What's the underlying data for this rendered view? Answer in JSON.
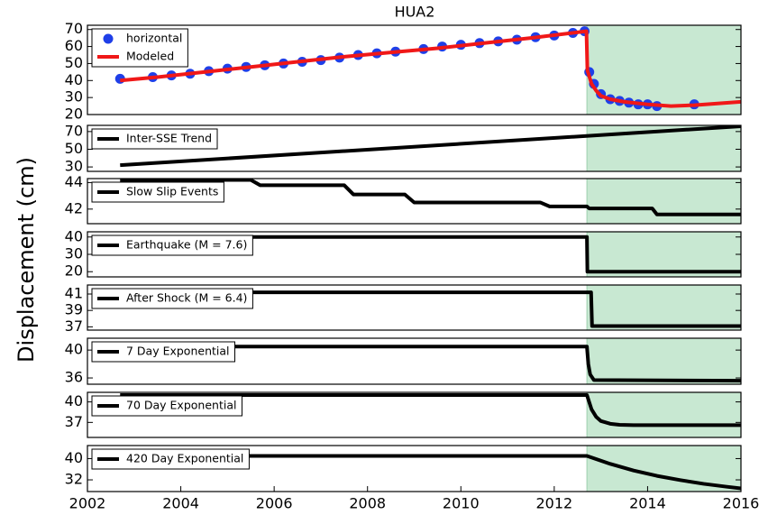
{
  "title": "HUA2",
  "ylabel": "Displacement (cm)",
  "chart_data": [
    {
      "type": "line",
      "xlim": [
        2002,
        2016
      ],
      "ylim": [
        20,
        72.5
      ],
      "yticks": [
        20,
        30,
        40,
        50,
        60,
        70
      ],
      "legend": "upper left",
      "span": [
        2012.7,
        2016
      ],
      "span_color": "#c8e8d2",
      "series": [
        {
          "name": "horizontal",
          "mode": "markers",
          "color": "#1f3fe8",
          "x": [
            2002.7,
            2003.4,
            2003.8,
            2004.2,
            2004.6,
            2005.0,
            2005.4,
            2005.8,
            2006.2,
            2006.6,
            2007.0,
            2007.4,
            2007.8,
            2008.2,
            2008.6,
            2009.2,
            2009.6,
            2010.0,
            2010.4,
            2010.8,
            2011.2,
            2011.6,
            2012.0,
            2012.4,
            2012.65,
            2012.75,
            2012.85,
            2013.0,
            2013.2,
            2013.4,
            2013.6,
            2013.8,
            2014.0,
            2014.2,
            2015.0
          ],
          "values": [
            41,
            42,
            43,
            44,
            45.5,
            47,
            48,
            49,
            50,
            51,
            52,
            53.5,
            55,
            56,
            57,
            58.5,
            60,
            61,
            62,
            63,
            64,
            65.5,
            66.5,
            68,
            69,
            45,
            38,
            32,
            29,
            28,
            27,
            26,
            26,
            25,
            26
          ]
        },
        {
          "name": "Modeled",
          "mode": "line",
          "color": "#f01818",
          "x": [
            2002.7,
            2003.5,
            2004.5,
            2005.5,
            2006.5,
            2007.5,
            2008.5,
            2009.5,
            2010.5,
            2011.5,
            2012.69,
            2012.71,
            2012.8,
            2012.9,
            2013.0,
            2013.2,
            2013.5,
            2014.0,
            2014.5,
            2015.0,
            2015.5,
            2016
          ],
          "values": [
            40,
            42,
            45,
            48,
            51,
            54,
            56.5,
            59,
            62,
            65,
            69,
            46,
            38,
            34,
            31,
            29,
            27.5,
            26,
            25,
            25.5,
            26.5,
            27.5
          ]
        }
      ]
    },
    {
      "type": "line",
      "xlim": [
        2002,
        2016
      ],
      "ylim": [
        25,
        77
      ],
      "yticks": [
        30,
        50,
        70
      ],
      "legend": "upper left",
      "span": [
        2012.7,
        2016
      ],
      "span_color": "#c8e8d2",
      "series": [
        {
          "name": "Inter-SSE Trend",
          "mode": "line",
          "color": "#000000",
          "x": [
            2002.7,
            2016
          ],
          "values": [
            32,
            76
          ]
        }
      ]
    },
    {
      "type": "line",
      "xlim": [
        2002,
        2016
      ],
      "ylim": [
        40.9,
        44.3
      ],
      "yticks": [
        42,
        44
      ],
      "legend": "upper left",
      "span": [
        2012.7,
        2016
      ],
      "span_color": "#c8e8d2",
      "series": [
        {
          "name": "Slow Slip Events",
          "mode": "line",
          "color": "#000000",
          "x": [
            2002.7,
            2005.5,
            2005.7,
            2007.5,
            2007.7,
            2008.8,
            2009.0,
            2011.7,
            2011.9,
            2012.7,
            2012.75,
            2014.1,
            2014.2,
            2016
          ],
          "values": [
            44.2,
            44.2,
            43.8,
            43.8,
            43.1,
            43.1,
            42.5,
            42.5,
            42.2,
            42.2,
            42.05,
            42.05,
            41.6,
            41.6
          ]
        }
      ]
    },
    {
      "type": "line",
      "xlim": [
        2002,
        2016
      ],
      "ylim": [
        17,
        43
      ],
      "yticks": [
        20,
        30,
        40
      ],
      "legend": "upper left",
      "span": [
        2012.7,
        2016
      ],
      "span_color": "#c8e8d2",
      "series": [
        {
          "name": "Earthquake (M = 7.6)",
          "mode": "line",
          "color": "#000000",
          "x": [
            2002.7,
            2012.7,
            2012.71,
            2016
          ],
          "values": [
            40,
            40,
            20,
            20
          ]
        }
      ]
    },
    {
      "type": "line",
      "xlim": [
        2002,
        2016
      ],
      "ylim": [
        36.6,
        42.1
      ],
      "yticks": [
        37,
        39,
        41
      ],
      "legend": "upper left",
      "span": [
        2012.7,
        2016
      ],
      "span_color": "#c8e8d2",
      "series": [
        {
          "name": "After Shock (M = 6.4)",
          "mode": "line",
          "color": "#000000",
          "x": [
            2002.7,
            2012.79,
            2012.81,
            2016
          ],
          "values": [
            41.2,
            41.2,
            37.1,
            37.1
          ]
        }
      ]
    },
    {
      "type": "line",
      "xlim": [
        2002,
        2016
      ],
      "ylim": [
        35.1,
        41.7
      ],
      "yticks": [
        36,
        40
      ],
      "legend": "upper left",
      "span": [
        2012.7,
        2016
      ],
      "span_color": "#c8e8d2",
      "series": [
        {
          "name": "7 Day Exponential",
          "mode": "line",
          "color": "#000000",
          "x": [
            2002.7,
            2012.7,
            2012.73,
            2012.77,
            2012.85,
            2016
          ],
          "values": [
            40.5,
            40.5,
            38,
            36.5,
            35.7,
            35.6
          ]
        }
      ]
    },
    {
      "type": "line",
      "xlim": [
        2002,
        2016
      ],
      "ylim": [
        34.8,
        41.4
      ],
      "yticks": [
        37,
        40
      ],
      "legend": "upper left",
      "span": [
        2012.7,
        2016
      ],
      "span_color": "#c8e8d2",
      "series": [
        {
          "name": "70 Day Exponential",
          "mode": "line",
          "color": "#000000",
          "x": [
            2002.7,
            2012.7,
            2012.8,
            2012.9,
            2013.0,
            2013.2,
            2013.4,
            2013.7,
            2014,
            2016
          ],
          "values": [
            41,
            41,
            38.9,
            37.8,
            37.2,
            36.8,
            36.65,
            36.6,
            36.6,
            36.6
          ]
        }
      ]
    },
    {
      "type": "line",
      "xlim": [
        2002,
        2016
      ],
      "ylim": [
        27.6,
        44.9
      ],
      "yticks": [
        32,
        40
      ],
      "xticks": [
        2002,
        2004,
        2006,
        2008,
        2010,
        2012,
        2014,
        2016
      ],
      "legend": "upper left",
      "span": [
        2012.7,
        2016
      ],
      "span_color": "#c8e8d2",
      "series": [
        {
          "name": "420 Day Exponential",
          "mode": "line",
          "color": "#000000",
          "x": [
            2002.7,
            2012.7,
            2013.2,
            2013.7,
            2014.2,
            2014.7,
            2015.2,
            2015.7,
            2016
          ],
          "values": [
            41,
            41,
            38,
            35.5,
            33.5,
            31.9,
            30.5,
            29.4,
            28.8
          ]
        }
      ]
    }
  ]
}
